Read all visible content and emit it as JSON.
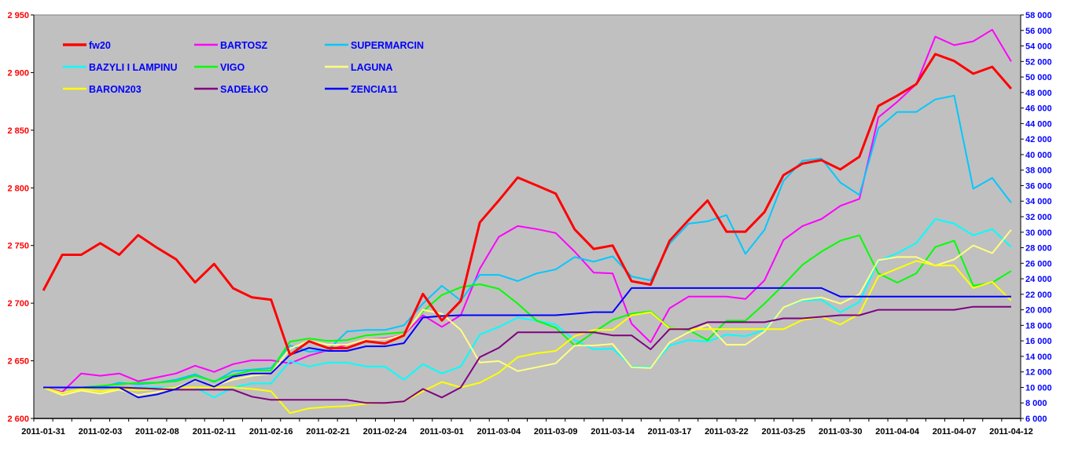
{
  "chart_data": {
    "type": "line",
    "title": "",
    "xlabel": "",
    "ylabel_left": "",
    "ylabel_right": "",
    "grid": false,
    "legend_position": "top-left",
    "x_tick_labels": [
      "2011-01-31",
      "2011-02-03",
      "2011-02-08",
      "2011-02-11",
      "2011-02-16",
      "2011-02-21",
      "2011-02-24",
      "2011-03-01",
      "2011-03-04",
      "2011-03-09",
      "2011-03-14",
      "2011-03-17",
      "2011-03-22",
      "2011-03-25",
      "2011-03-30",
      "2011-04-04",
      "2011-04-07",
      "2011-04-12"
    ],
    "x_tick_label_every": 3,
    "y_left": {
      "range": [
        2600,
        2950
      ],
      "step": 50,
      "ticks": [
        "2 600",
        "2 650",
        "2 700",
        "2 750",
        "2 800",
        "2 850",
        "2 900",
        "2 950"
      ],
      "color": "#FF0000"
    },
    "y_right": {
      "range": [
        6000,
        58000
      ],
      "step": 2000,
      "ticks": [
        "6 000",
        "8 000",
        "10 000",
        "12 000",
        "14 000",
        "16 000",
        "18 000",
        "20 000",
        "22 000",
        "24 000",
        "26 000",
        "28 000",
        "30 000",
        "32 000",
        "34 000",
        "36 000",
        "38 000",
        "40 000",
        "42 000",
        "44 000",
        "46 000",
        "48 000",
        "50 000",
        "52 000",
        "54 000",
        "56 000",
        "58 000"
      ],
      "color": "#0000FF"
    },
    "series": [
      {
        "name": "fw20",
        "axis": "left",
        "color": "#FF0000",
        "values": [
          2711,
          2742,
          2742,
          2752,
          2742,
          2759,
          2748,
          2738,
          2718,
          2734,
          2713,
          2705,
          2703,
          2655,
          2667,
          2661,
          2661,
          2667,
          2665,
          2672,
          2708,
          2685,
          2702,
          2770,
          2789,
          2809,
          2802,
          2795,
          2764,
          2747,
          2750,
          2719,
          2716,
          2754,
          2772,
          2789,
          2762,
          2762,
          2779,
          2811,
          2821,
          2824,
          2816,
          2827,
          2871,
          2880,
          2890,
          2916,
          2910,
          2899,
          2905,
          2886
        ]
      },
      {
        "name": "BARTOSZ",
        "axis": "right",
        "color": "#FF00FF",
        "values": [
          10000,
          9400,
          11800,
          11500,
          11800,
          10800,
          11300,
          11800,
          12800,
          12000,
          13000,
          13500,
          13500,
          13100,
          14100,
          14800,
          15500,
          16200,
          16300,
          16800,
          19300,
          17800,
          19300,
          25300,
          29400,
          30800,
          30400,
          29900,
          27500,
          24800,
          24700,
          18200,
          15800,
          20200,
          21700,
          21700,
          21700,
          21400,
          23800,
          29000,
          30800,
          31700,
          33400,
          34300,
          44800,
          46800,
          49100,
          55200,
          54100,
          54600,
          56100,
          52000
        ]
      },
      {
        "name": "SUPERMARCIN",
        "axis": "right",
        "color": "#00C8FF",
        "values": [
          10000,
          10000,
          10000,
          10000,
          10600,
          10400,
          10600,
          11000,
          11700,
          10700,
          12100,
          12300,
          12500,
          15400,
          14600,
          14800,
          17200,
          17400,
          17400,
          18000,
          20800,
          23100,
          21200,
          24500,
          24500,
          23700,
          24700,
          25200,
          26800,
          26200,
          26900,
          24300,
          23800,
          28500,
          31100,
          31400,
          32200,
          27200,
          30300,
          36600,
          39200,
          39500,
          36400,
          34800,
          43400,
          45500,
          45500,
          47100,
          47600,
          35600,
          37000,
          33800
        ]
      },
      {
        "name": "BAZYLI I LAMPINU",
        "axis": "right",
        "color": "#00FFFF",
        "values": [
          10000,
          10000,
          10000,
          10000,
          10000,
          10000,
          10000,
          10000,
          10000,
          8700,
          10000,
          10500,
          10500,
          13400,
          12700,
          13200,
          13200,
          12700,
          12700,
          11000,
          13000,
          11800,
          12700,
          16800,
          17800,
          19000,
          18600,
          18100,
          16100,
          14900,
          15000,
          12700,
          12600,
          15400,
          16100,
          15900,
          16800,
          16600,
          17400,
          20300,
          21200,
          21300,
          19700,
          21000,
          26300,
          27300,
          28600,
          31700,
          31100,
          29600,
          30400,
          28100
        ]
      },
      {
        "name": "VIGO",
        "axis": "right",
        "color": "#00FF00",
        "values": [
          10000,
          10000,
          10000,
          10200,
          10400,
          10600,
          10600,
          10800,
          11500,
          10800,
          11600,
          12200,
          12200,
          15900,
          16300,
          16000,
          16100,
          16700,
          16900,
          17100,
          19800,
          21900,
          22900,
          23300,
          22700,
          20800,
          18600,
          17700,
          15400,
          17100,
          18700,
          19500,
          19800,
          17700,
          17400,
          16100,
          18600,
          18600,
          20800,
          23200,
          25800,
          27500,
          28900,
          29600,
          24700,
          23500,
          24700,
          28100,
          28900,
          23100,
          23500,
          25000
        ]
      },
      {
        "name": "LAGUNA",
        "axis": "right",
        "color": "#FFFF80",
        "values": [
          10000,
          9000,
          9600,
          9200,
          9700,
          9000,
          9400,
          10000,
          10900,
          10200,
          11000,
          11500,
          11800,
          15000,
          16000,
          15500,
          15500,
          16200,
          16200,
          16800,
          20000,
          19500,
          17400,
          13200,
          13400,
          12100,
          12600,
          13100,
          15400,
          15400,
          15600,
          12600,
          12500,
          15800,
          17100,
          18100,
          15500,
          15500,
          17200,
          20300,
          21300,
          21600,
          20800,
          22000,
          26400,
          26800,
          26800,
          25700,
          26500,
          28300,
          27300,
          30300
        ]
      },
      {
        "name": "BARON203",
        "axis": "right",
        "color": "#FFFF00",
        "values": [
          10000,
          9300,
          9800,
          9500,
          9800,
          9600,
          9800,
          10000,
          10000,
          10000,
          10000,
          9800,
          9500,
          6700,
          7300,
          7500,
          7600,
          7900,
          8000,
          8200,
          9500,
          10700,
          10000,
          10600,
          11900,
          13900,
          14400,
          14700,
          16600,
          17400,
          17400,
          19300,
          19700,
          17600,
          17500,
          17500,
          17500,
          17500,
          17500,
          17500,
          18700,
          19100,
          18100,
          19500,
          24300,
          25300,
          26300,
          25700,
          25700,
          22800,
          23600,
          21200
        ]
      },
      {
        "name": "SADEŁKO",
        "axis": "right",
        "color": "#800080",
        "values": [
          10000,
          10000,
          10000,
          10000,
          10000,
          9900,
          9800,
          9700,
          9700,
          9700,
          9700,
          8800,
          8400,
          8400,
          8400,
          8400,
          8400,
          8000,
          8000,
          8200,
          9800,
          8700,
          10000,
          13900,
          15100,
          17100,
          17100,
          17100,
          17100,
          17100,
          16700,
          16700,
          14900,
          17500,
          17500,
          18400,
          18400,
          18400,
          18400,
          18900,
          18900,
          19100,
          19300,
          19300,
          20000,
          20000,
          20000,
          20000,
          20000,
          20400,
          20400,
          20400
        ]
      },
      {
        "name": "ZENCIA11",
        "axis": "right",
        "color": "#0000FF",
        "values": [
          10000,
          10000,
          10000,
          10000,
          10000,
          8700,
          9100,
          9800,
          11000,
          10100,
          11400,
          11800,
          11800,
          14200,
          15100,
          14700,
          14700,
          15300,
          15300,
          15700,
          19000,
          19200,
          19300,
          19300,
          19300,
          19300,
          19300,
          19300,
          19500,
          19700,
          19700,
          22800,
          22800,
          22800,
          22800,
          22800,
          22800,
          22800,
          22800,
          22800,
          22800,
          22800,
          21700,
          21700,
          21700,
          21700,
          21700,
          21700,
          21700,
          21700,
          21700,
          21700
        ]
      }
    ]
  }
}
